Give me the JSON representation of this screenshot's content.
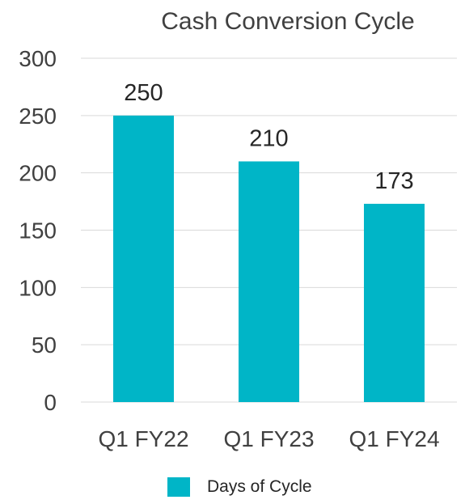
{
  "chart_data": {
    "type": "bar",
    "title": "Cash Conversion Cycle",
    "categories": [
      "Q1 FY22",
      "Q1 FY23",
      "Q1 FY24"
    ],
    "series": [
      {
        "name": "Days of Cycle",
        "values": [
          250,
          210,
          173
        ],
        "color": "#00b5c7"
      }
    ],
    "ylim": [
      0,
      300
    ],
    "yticks": [
      0,
      50,
      100,
      150,
      200,
      250,
      300
    ],
    "grid": true,
    "legend": "bottom",
    "data_labels": true
  }
}
